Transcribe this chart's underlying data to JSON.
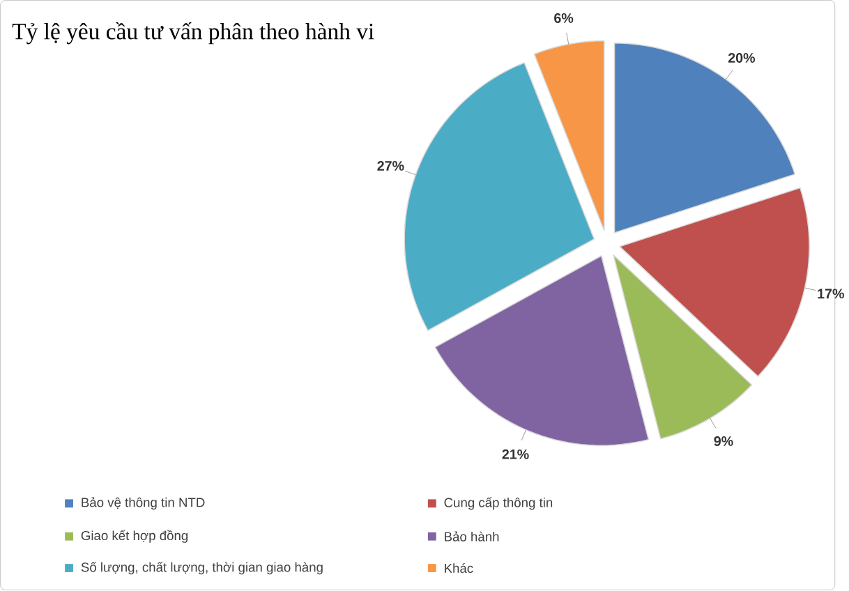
{
  "chart_data": {
    "type": "pie",
    "title": "Tỷ lệ yêu cầu tư vấn phân theo hành vi",
    "categories": [
      "Bảo vệ thông tin NTD",
      "Cung cấp thông tin",
      "Giao kết hợp đồng",
      "Bảo hành",
      "Số lượng, chất lượng, thời gian giao hàng",
      "Khác"
    ],
    "values": [
      20,
      17,
      9,
      21,
      27,
      6
    ],
    "value_labels": [
      "20%",
      "17%",
      "9%",
      "21%",
      "27%",
      "6%"
    ],
    "colors": [
      "#4f81bd",
      "#c0504d",
      "#9bbb59",
      "#8064a2",
      "#4bacc6",
      "#f79646"
    ],
    "legend": "bottom"
  }
}
